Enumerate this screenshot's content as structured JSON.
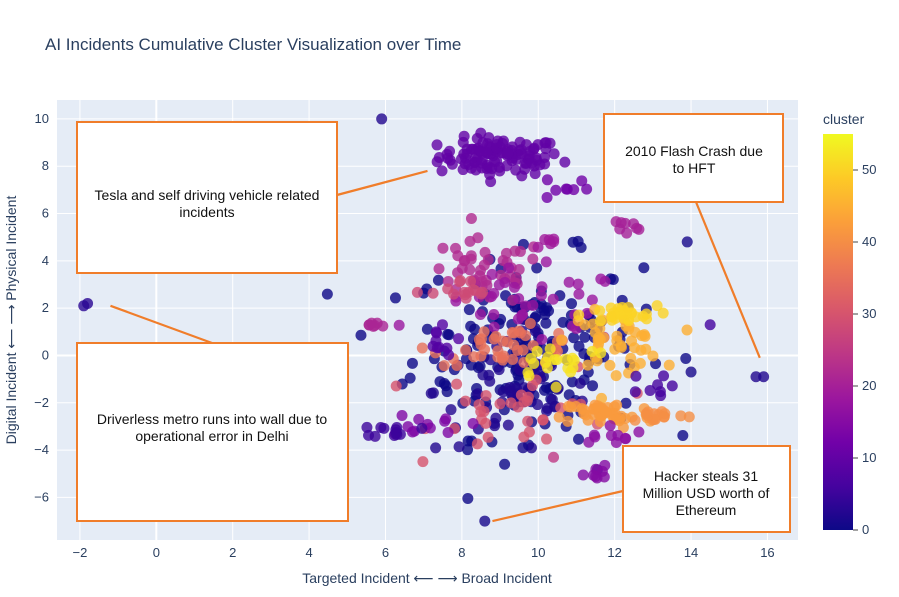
{
  "chart_data": {
    "type": "scatter",
    "title": "AI Incidents Cumulative Cluster Visualization over Time",
    "xlabel": "Targeted Incident ⟵ ⟶ Broad Incident",
    "ylabel": "Digital Incident ⟵ ⟶ Physical Incident",
    "xlim": [
      -2.6,
      16.8
    ],
    "ylim": [
      -7.8,
      10.8
    ],
    "x_ticks": [
      -2,
      0,
      2,
      4,
      6,
      8,
      10,
      12,
      14,
      16
    ],
    "y_ticks": [
      -6,
      -4,
      -2,
      0,
      2,
      4,
      6,
      8,
      10
    ],
    "grid": true,
    "colorscale": "plasma",
    "colors": {
      "plot_bg": "#e5ecf6",
      "grid": "#ffffff",
      "annotation_border": "#f07d2a",
      "text": "#2a3f5f"
    },
    "colorbar": {
      "title": "cluster",
      "min": 0,
      "max": 55,
      "ticks": [
        0,
        10,
        20,
        30,
        40,
        50
      ]
    },
    "clusters": [
      {
        "cluster": 10,
        "cx": 9.0,
        "cy": 8.4,
        "sx": 0.8,
        "sy": 0.4,
        "n": 110
      },
      {
        "cluster": 12,
        "cx": 10.7,
        "cy": 7.1,
        "sx": 0.3,
        "sy": 0.3,
        "n": 8
      },
      {
        "cluster": 0,
        "cx": 9.7,
        "cy": 0.4,
        "sx": 1.5,
        "sy": 1.9,
        "n": 190
      },
      {
        "cluster": 2,
        "cx": 9.3,
        "cy": -1.5,
        "sx": 1.0,
        "sy": 1.3,
        "n": 55
      },
      {
        "cluster": 22,
        "cx": 8.6,
        "cy": 3.5,
        "sx": 0.8,
        "sy": 0.7,
        "n": 45
      },
      {
        "cluster": 18,
        "cx": 9.8,
        "cy": 2.0,
        "sx": 1.3,
        "sy": 0.8,
        "n": 35
      },
      {
        "cluster": 30,
        "cx": 9.7,
        "cy": -2.2,
        "sx": 1.2,
        "sy": 0.9,
        "n": 35
      },
      {
        "cluster": 35,
        "cx": 9.2,
        "cy": 0.4,
        "sx": 1.0,
        "sy": 0.4,
        "n": 40
      },
      {
        "cluster": 45,
        "cx": 12.0,
        "cy": 0.6,
        "sx": 0.6,
        "sy": 0.6,
        "n": 45
      },
      {
        "cluster": 50,
        "cx": 12.1,
        "cy": 1.7,
        "sx": 0.5,
        "sy": 0.2,
        "n": 30
      },
      {
        "cluster": 42,
        "cx": 11.8,
        "cy": -2.5,
        "sx": 0.6,
        "sy": 0.3,
        "n": 45
      },
      {
        "cluster": 40,
        "cx": 13.1,
        "cy": -2.5,
        "sx": 0.4,
        "sy": 0.15,
        "n": 15
      },
      {
        "cluster": 52,
        "cx": 10.6,
        "cy": -0.2,
        "sx": 0.7,
        "sy": 0.4,
        "n": 20
      },
      {
        "cluster": 28,
        "cx": 8.0,
        "cy": 2.6,
        "sx": 0.4,
        "sy": 0.3,
        "n": 15
      },
      {
        "cluster": 15,
        "cx": 11.5,
        "cy": -4.9,
        "sx": 0.15,
        "sy": 0.25,
        "n": 8
      },
      {
        "cluster": 14,
        "cx": 7.1,
        "cy": -2.9,
        "sx": 0.5,
        "sy": 0.25,
        "n": 12
      },
      {
        "cluster": 5,
        "cx": 6.3,
        "cy": -3.2,
        "sx": 0.3,
        "sy": 0.15,
        "n": 12
      },
      {
        "cluster": 16,
        "cx": 11.9,
        "cy": -3.1,
        "sx": 0.4,
        "sy": 0.3,
        "n": 10
      },
      {
        "cluster": 20,
        "cx": 12.2,
        "cy": 5.4,
        "sx": 0.3,
        "sy": 0.2,
        "n": 8
      },
      {
        "cluster": 19,
        "cx": 10.2,
        "cy": 4.7,
        "sx": 0.2,
        "sy": 0.2,
        "n": 6
      },
      {
        "cluster": 21,
        "cx": 5.7,
        "cy": 1.3,
        "sx": 0.2,
        "sy": 0.1,
        "n": 7
      },
      {
        "cluster": 8,
        "cx": 7.3,
        "cy": 0.6,
        "sx": 0.3,
        "sy": 0.3,
        "n": 10
      },
      {
        "cluster": 6,
        "cx": 12.8,
        "cy": -1.4,
        "sx": 0.3,
        "sy": 0.3,
        "n": 8
      }
    ],
    "isolated_points": [
      {
        "x": 5.9,
        "y": 10.0,
        "cluster": 2
      },
      {
        "x": -1.8,
        "y": 2.2,
        "cluster": 3
      },
      {
        "x": -1.9,
        "y": 2.1,
        "cluster": 3
      },
      {
        "x": 13.9,
        "y": 4.8,
        "cluster": 1
      },
      {
        "x": 14.0,
        "y": -0.7,
        "cluster": 1
      },
      {
        "x": 14.5,
        "y": 1.3,
        "cluster": 6
      },
      {
        "x": 15.7,
        "y": -0.9,
        "cluster": 2
      },
      {
        "x": 15.9,
        "y": -0.9,
        "cluster": 2
      },
      {
        "x": 8.6,
        "y": -7.0,
        "cluster": 1
      },
      {
        "x": 10.4,
        "y": -4.3,
        "cluster": 25
      },
      {
        "x": 9.6,
        "y": -3.9,
        "cluster": 1
      }
    ],
    "annotations": [
      {
        "text": "Tesla and self driving vehicle related incidents",
        "point_x": 7.1,
        "point_y": 7.8
      },
      {
        "text": "Driverless metro runs into wall due to operational error in Delhi",
        "point_x": -1.2,
        "point_y": 2.1
      },
      {
        "text": "2010 Flash Crash due to HFT",
        "point_x": 15.8,
        "point_y": -0.1
      },
      {
        "text": "Hacker steals 31 Million USD worth of Ethereum",
        "point_x": 8.8,
        "point_y": -7.0
      }
    ]
  }
}
